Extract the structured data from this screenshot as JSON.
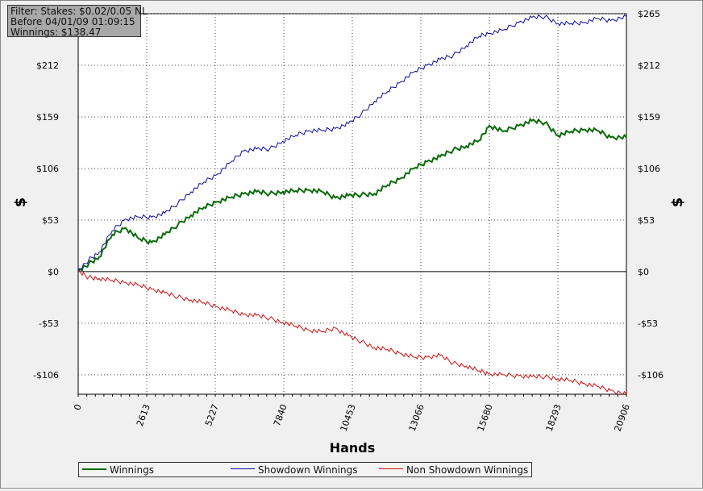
{
  "filter": {
    "line1": "Filter: Stakes: $0.02/0.05 NL",
    "line2": "Before 04/01/09 01:09:15",
    "line3": "Winnings: $138.47"
  },
  "colors": {
    "winnings": "#0a6a0a",
    "showdown": "#0a0aa0",
    "non_showdown": "#cc1010",
    "zero_line": "#000000",
    "grid": "#444444"
  },
  "chart_data": {
    "type": "line",
    "title": "",
    "xlabel": "Hands",
    "ylabel": "$",
    "xlim": [
      0,
      20906
    ],
    "ylim": [
      -126,
      265
    ],
    "x_ticks": [
      0,
      2613,
      5227,
      7840,
      10453,
      13066,
      15680,
      18293,
      20906
    ],
    "x_tick_labels": [
      "0",
      "2613",
      "5227",
      "7840",
      "10453",
      "13066",
      "15680",
      "18293",
      "20906"
    ],
    "y_ticks": [
      -106,
      -53,
      0,
      53,
      106,
      159,
      212,
      265
    ],
    "y_tick_labels": [
      "-$106",
      "-$53",
      "$0",
      "$53",
      "$106",
      "$159",
      "$212",
      "$265"
    ],
    "grid": true,
    "legend_position": "bottom",
    "series": [
      {
        "name": "Winnings",
        "x": [
          0,
          400,
          800,
          1300,
          1800,
          2300,
          2800,
          3300,
          3800,
          4300,
          4800,
          5300,
          5800,
          6300,
          6800,
          7300,
          7800,
          8300,
          8800,
          9300,
          9800,
          10300,
          10800,
          11300,
          11800,
          12300,
          12800,
          13300,
          13800,
          14300,
          14800,
          15300,
          15680,
          16200,
          16800,
          17300,
          17800,
          18300,
          18800,
          19300,
          19800,
          20300,
          20906
        ],
        "values": [
          0,
          8,
          15,
          38,
          45,
          34,
          30,
          38,
          48,
          58,
          66,
          72,
          76,
          80,
          82,
          80,
          82,
          83,
          84,
          82,
          76,
          78,
          79,
          80,
          89,
          96,
          106,
          113,
          118,
          125,
          129,
          135,
          150,
          144,
          150,
          155,
          153,
          140,
          144,
          146,
          145,
          138,
          138
        ]
      },
      {
        "name": "Showdown Winnings",
        "x": [
          0,
          400,
          800,
          1300,
          1800,
          2300,
          2800,
          3300,
          3800,
          4300,
          4800,
          5300,
          5800,
          6300,
          6800,
          7300,
          7800,
          8300,
          8800,
          9300,
          9800,
          10300,
          10800,
          11300,
          11800,
          12300,
          12800,
          13300,
          13800,
          14300,
          14800,
          15300,
          15680,
          16200,
          16800,
          17300,
          17800,
          18300,
          18800,
          19300,
          19800,
          20300,
          20906
        ],
        "values": [
          0,
          12,
          20,
          42,
          54,
          56,
          56,
          60,
          70,
          82,
          92,
          100,
          112,
          124,
          126,
          126,
          134,
          140,
          145,
          145,
          147,
          152,
          162,
          175,
          185,
          195,
          205,
          212,
          218,
          222,
          232,
          242,
          245,
          248,
          256,
          261,
          262,
          255,
          255,
          256,
          260,
          258,
          262
        ]
      },
      {
        "name": "Non Showdown Winnings",
        "x": [
          0,
          400,
          800,
          1300,
          1800,
          2300,
          2800,
          3300,
          3800,
          4300,
          4800,
          5300,
          5800,
          6300,
          6800,
          7300,
          7800,
          8300,
          8800,
          9300,
          9800,
          10300,
          10800,
          11300,
          11800,
          12300,
          12800,
          13300,
          13800,
          14300,
          14800,
          15300,
          15680,
          16200,
          16800,
          17300,
          17800,
          18300,
          18800,
          19300,
          19800,
          20300,
          20906
        ],
        "values": [
          0,
          -6,
          -7,
          -9,
          -11,
          -14,
          -18,
          -22,
          -26,
          -29,
          -32,
          -36,
          -40,
          -44,
          -45,
          -48,
          -52,
          -56,
          -60,
          -62,
          -58,
          -66,
          -72,
          -78,
          -80,
          -84,
          -88,
          -88,
          -86,
          -94,
          -97,
          -102,
          -105,
          -106,
          -107,
          -108,
          -108,
          -110,
          -112,
          -115,
          -118,
          -122,
          -126
        ]
      }
    ]
  }
}
